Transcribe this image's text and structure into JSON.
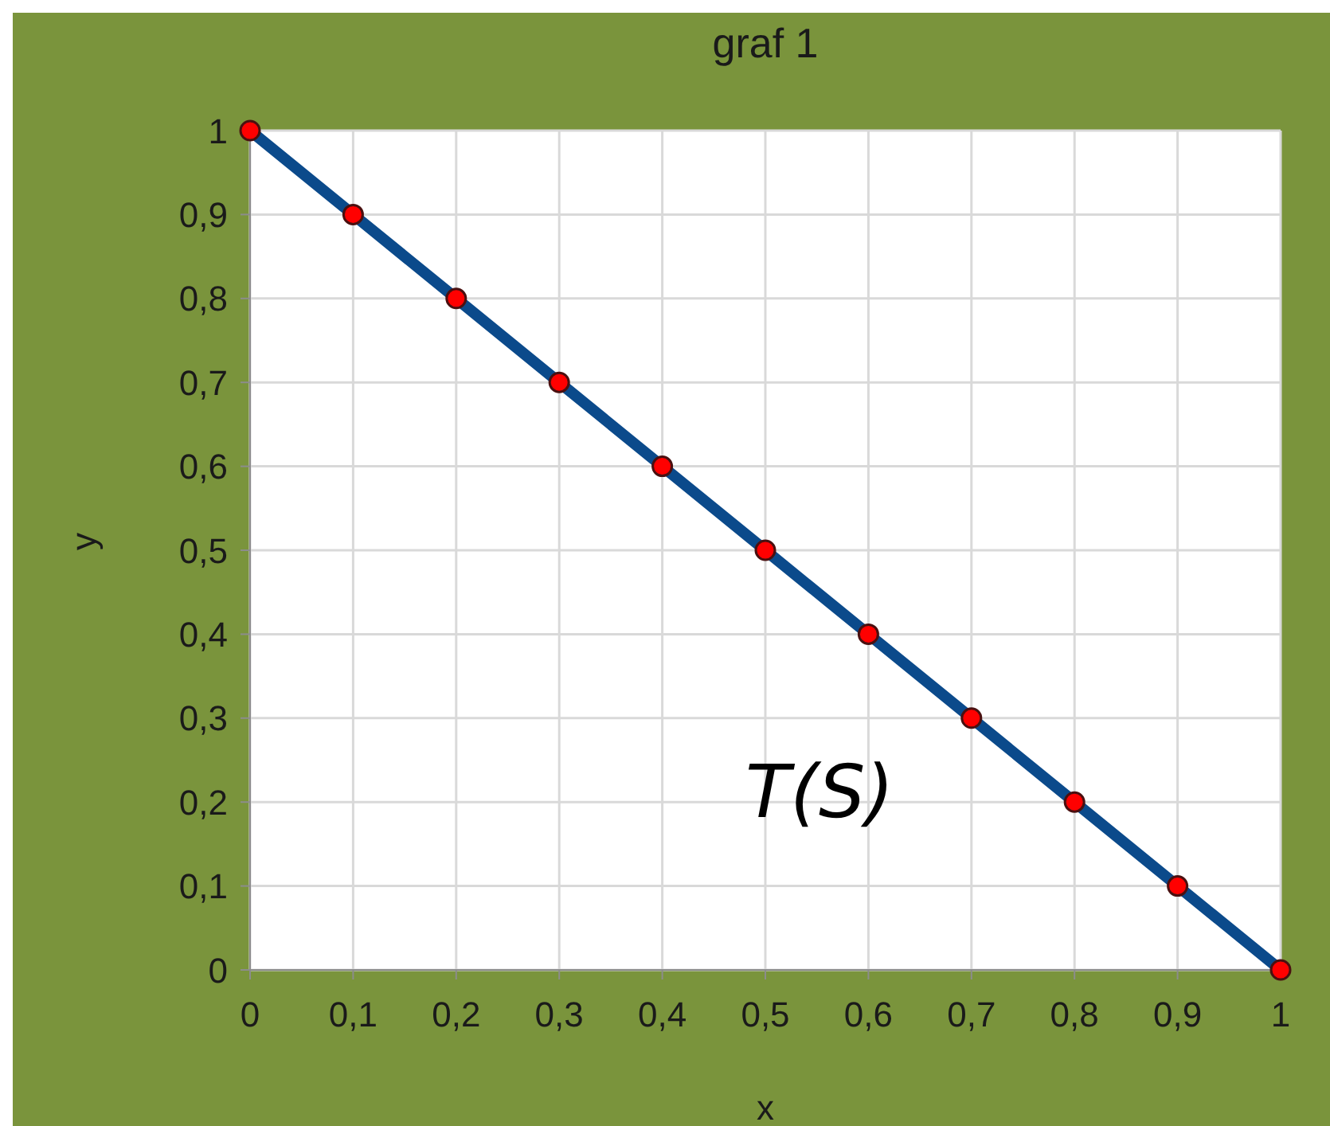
{
  "chart_data": {
    "type": "line",
    "title": "graf 1",
    "xlabel": "x",
    "ylabel": "y",
    "annotations": [
      "T(S)"
    ],
    "x": [
      0,
      0.1,
      0.2,
      0.3,
      0.4,
      0.5,
      0.6,
      0.7,
      0.8,
      0.9,
      1
    ],
    "series": [
      {
        "color": "#0b4a8b",
        "colors": [
          "#ff0000",
          "#ff0000",
          "#ff0000",
          "#ff0000",
          "#ff0000",
          "#ff0000",
          "#ff0000",
          "#ff0000",
          "#ff0000",
          "#ff0000",
          "#ff0000"
        ],
        "values": [
          1,
          0.9,
          0.8,
          0.7,
          0.6,
          0.5,
          0.4,
          0.3,
          0.2,
          0.1,
          0
        ]
      }
    ],
    "xlim": [
      0,
      1
    ],
    "ylim": [
      0,
      1
    ],
    "xticks": [
      0,
      {
        "value": 0.1,
        "label": "0,1"
      },
      {
        "value": 0.2,
        "label": "0,2"
      },
      {
        "value": 0.3,
        "label": "0,3"
      },
      {
        "value": 0.4,
        "label": "0,4"
      },
      {
        "value": 0.5,
        "label": "0,5"
      },
      {
        "value": 0.6,
        "label": "0,6"
      },
      {
        "value": 0.7,
        "label": "0,7"
      },
      {
        "value": 0.8,
        "label": "0,8"
      },
      {
        "value": 0.9,
        "label": "0,9"
      },
      1
    ],
    "yticks": [
      0,
      {
        "value": 0.1,
        "label": "0,1"
      },
      {
        "value": 0.2,
        "label": "0,2"
      },
      {
        "value": 0.3,
        "label": "0,3"
      },
      {
        "value": 0.4,
        "label": "0,4"
      },
      {
        "value": 0.5,
        "label": "0,5"
      },
      {
        "value": 0.6,
        "label": "0,6"
      },
      {
        "value": 0.7,
        "label": "0,7"
      },
      {
        "value": 0.8,
        "label": "0,8"
      },
      {
        "value": 0.9,
        "label": "0,9"
      },
      1
    ],
    "grid": true,
    "legend": false,
    "marker": "circle",
    "line_style": "solid"
  }
}
